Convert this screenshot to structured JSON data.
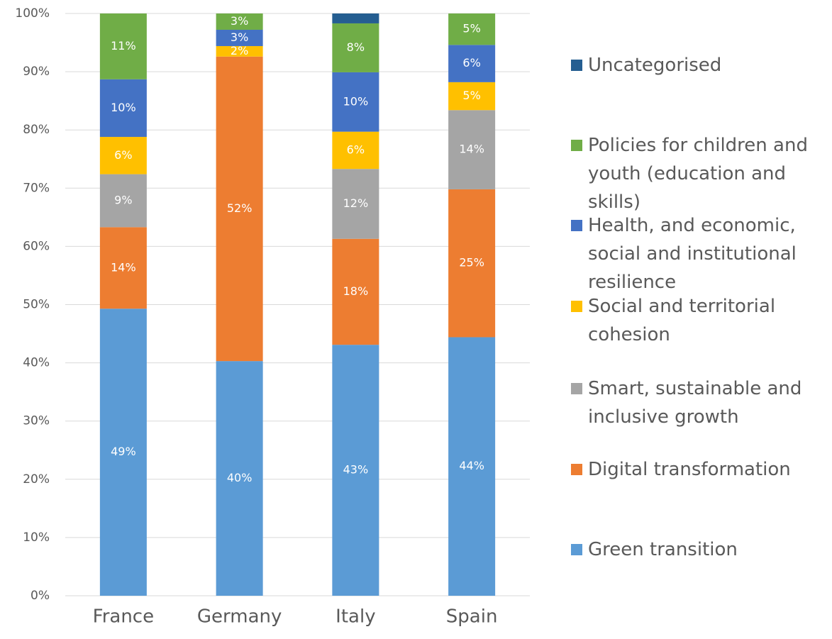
{
  "chart_data": {
    "type": "stacked_bar",
    "categories": [
      "France",
      "Germany",
      "Italy",
      "Spain"
    ],
    "series": [
      {
        "name": "Green transition",
        "color": "#5b9bd5",
        "values": [
          49.3,
          40.3,
          43.1,
          44.4
        ],
        "value_labels": [
          "49%",
          "40%",
          "43%",
          "44%"
        ]
      },
      {
        "name": "Digital transformation",
        "color": "#ed7d31",
        "values": [
          14.0,
          52.3,
          18.2,
          25.4
        ],
        "value_labels": [
          "14%",
          "52%",
          "18%",
          "25%"
        ]
      },
      {
        "name": "Smart, sustainable and inclusive growth",
        "color": "#a5a5a5",
        "values": [
          9.1,
          0,
          12.0,
          13.6
        ],
        "value_labels": [
          "9%",
          null,
          "12%",
          "14%"
        ]
      },
      {
        "name": "Social and territorial cohesion",
        "color": "#ffc000",
        "values": [
          6.4,
          1.8,
          6.4,
          4.8
        ],
        "value_labels": [
          "6%",
          "2%",
          "6%",
          "5%"
        ]
      },
      {
        "name": "Health, and economic, social and institutional resilience",
        "color": "#4472c4",
        "values": [
          9.9,
          2.8,
          10.2,
          6.4
        ],
        "value_labels": [
          "10%",
          "3%",
          "10%",
          "6%"
        ]
      },
      {
        "name": "Policies for children and youth (education and skills)",
        "color": "#70ad47",
        "values": [
          11.3,
          2.8,
          8.4,
          5.4
        ],
        "value_labels": [
          "11%",
          "3%",
          "8%",
          "5%"
        ]
      },
      {
        "name": "Uncategorised",
        "color": "#255e91",
        "values": [
          0,
          0,
          1.7,
          0
        ],
        "value_labels": [
          null,
          null,
          null,
          null
        ]
      }
    ],
    "ylim": [
      0,
      100
    ],
    "yticks": [
      {
        "value": 0,
        "label": "0%"
      },
      {
        "value": 10,
        "label": "10%"
      },
      {
        "value": 20,
        "label": "20%"
      },
      {
        "value": 30,
        "label": "30%"
      },
      {
        "value": 40,
        "label": "40%"
      },
      {
        "value": 50,
        "label": "50%"
      },
      {
        "value": 60,
        "label": "60%"
      },
      {
        "value": 70,
        "label": "70%"
      },
      {
        "value": 80,
        "label": "80%"
      },
      {
        "value": 90,
        "label": "90%"
      },
      {
        "value": 100,
        "label": "100%"
      }
    ],
    "grid": true,
    "legend": "right"
  }
}
